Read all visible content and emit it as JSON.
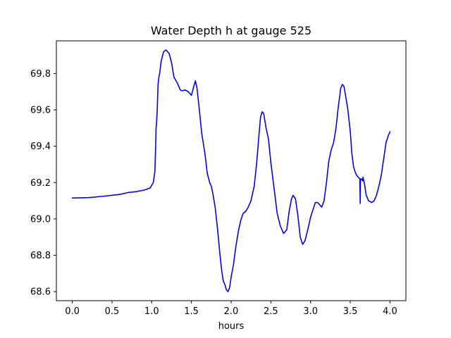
{
  "chart_data": {
    "type": "line",
    "title": "Water Depth h at gauge 525",
    "xlabel": "hours",
    "ylabel": "",
    "xlim": [
      -0.2,
      4.2
    ],
    "ylim": [
      68.55,
      69.98
    ],
    "xticks": [
      0.0,
      0.5,
      1.0,
      1.5,
      2.0,
      2.5,
      3.0,
      3.5,
      4.0
    ],
    "xtick_labels": [
      "0.0",
      "0.5",
      "1.0",
      "1.5",
      "2.0",
      "2.5",
      "3.0",
      "3.5",
      "4.0"
    ],
    "yticks": [
      68.6,
      68.8,
      69.0,
      69.2,
      69.4,
      69.6,
      69.8
    ],
    "ytick_labels": [
      "68.6",
      "68.8",
      "69.0",
      "69.2",
      "69.4",
      "69.6",
      "69.8"
    ],
    "grid": false,
    "line_color": "#0000ff",
    "series": [
      {
        "x": [
          0.0,
          0.2,
          0.4,
          0.6,
          0.7,
          0.8,
          0.9,
          0.98,
          1.02,
          1.04,
          1.05,
          1.055,
          1.06,
          1.07,
          1.08,
          1.09,
          1.1,
          1.12,
          1.15,
          1.18,
          1.2,
          1.22,
          1.25,
          1.28,
          1.32,
          1.36,
          1.38,
          1.42,
          1.46,
          1.5,
          1.53,
          1.55,
          1.57,
          1.6,
          1.63,
          1.67,
          1.7,
          1.73,
          1.75,
          1.77,
          1.8,
          1.83,
          1.86,
          1.88,
          1.9,
          1.92,
          1.94,
          1.96,
          1.98,
          2.0,
          2.03,
          2.06,
          2.09,
          2.12,
          2.15,
          2.18,
          2.21,
          2.25,
          2.29,
          2.32,
          2.35,
          2.37,
          2.39,
          2.41,
          2.44,
          2.47,
          2.5,
          2.54,
          2.58,
          2.62,
          2.66,
          2.7,
          2.73,
          2.76,
          2.78,
          2.81,
          2.84,
          2.87,
          2.9,
          2.93,
          2.97,
          3.0,
          3.03,
          3.06,
          3.09,
          3.11,
          3.14,
          3.17,
          3.2,
          3.23,
          3.26,
          3.29,
          3.32,
          3.35,
          3.38,
          3.4,
          3.42,
          3.44,
          3.47,
          3.5,
          3.52,
          3.54,
          3.56,
          3.58,
          3.6,
          3.62,
          3.625,
          3.627,
          3.63,
          3.64,
          3.655,
          3.66,
          3.68,
          3.7,
          3.73,
          3.77,
          3.8,
          3.83,
          3.86,
          3.89,
          3.92,
          3.95,
          3.98,
          4.0
        ],
        "y": [
          69.115,
          69.117,
          69.125,
          69.135,
          69.145,
          69.15,
          69.158,
          69.17,
          69.2,
          69.26,
          69.4,
          69.5,
          69.52,
          69.6,
          69.74,
          69.78,
          69.8,
          69.87,
          69.92,
          69.93,
          69.92,
          69.91,
          69.86,
          69.78,
          69.75,
          69.71,
          69.705,
          69.71,
          69.7,
          69.68,
          69.73,
          69.76,
          69.72,
          69.6,
          69.47,
          69.36,
          69.25,
          69.2,
          69.18,
          69.14,
          69.06,
          68.94,
          68.8,
          68.72,
          68.66,
          68.64,
          68.61,
          68.6,
          68.62,
          68.68,
          68.75,
          68.85,
          68.93,
          68.99,
          69.03,
          69.04,
          69.06,
          69.1,
          69.18,
          69.3,
          69.46,
          69.56,
          69.59,
          69.58,
          69.5,
          69.44,
          69.31,
          69.17,
          69.03,
          68.96,
          68.92,
          68.94,
          69.04,
          69.11,
          69.13,
          69.11,
          69.02,
          68.9,
          68.86,
          68.88,
          68.95,
          69.01,
          69.05,
          69.09,
          69.09,
          69.08,
          69.065,
          69.1,
          69.2,
          69.32,
          69.38,
          69.42,
          69.5,
          69.62,
          69.72,
          69.74,
          69.73,
          69.68,
          69.6,
          69.48,
          69.36,
          69.29,
          69.26,
          69.24,
          69.23,
          69.22,
          69.085,
          69.2,
          69.22,
          69.22,
          69.21,
          69.23,
          69.19,
          69.13,
          69.1,
          69.09,
          69.1,
          69.13,
          69.18,
          69.24,
          69.33,
          69.42,
          69.46,
          69.48
        ]
      }
    ]
  }
}
